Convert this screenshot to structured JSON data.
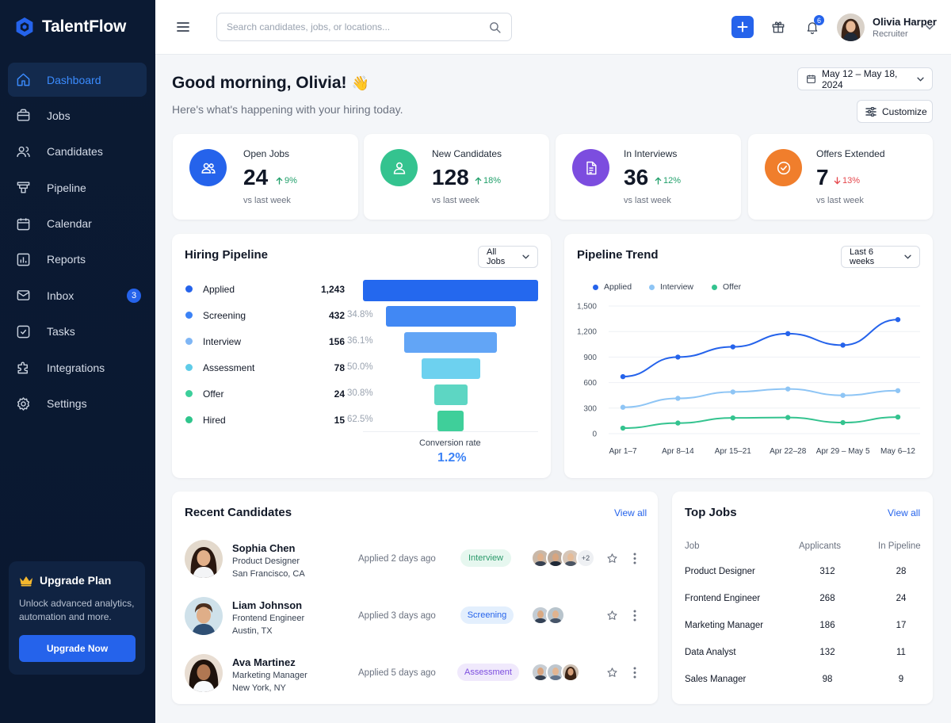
{
  "app": {
    "name": "TalentFlow",
    "accent": "#2563eb"
  },
  "sidebar": {
    "items": [
      {
        "label": "Dashboard",
        "icon": "home-icon",
        "active": true
      },
      {
        "label": "Jobs",
        "icon": "briefcase-icon"
      },
      {
        "label": "Candidates",
        "icon": "users-icon"
      },
      {
        "label": "Pipeline",
        "icon": "funnel-icon"
      },
      {
        "label": "Calendar",
        "icon": "calendar-icon"
      },
      {
        "label": "Reports",
        "icon": "bar-chart-icon"
      },
      {
        "label": "Inbox",
        "icon": "mail-icon",
        "badge": "3"
      },
      {
        "label": "Tasks",
        "icon": "checkbox-icon"
      },
      {
        "label": "Integrations",
        "icon": "puzzle-icon"
      },
      {
        "label": "Settings",
        "icon": "gear-icon"
      }
    ],
    "upgrade": {
      "title": "Upgrade Plan",
      "description": "Unlock advanced analytics, automation and more.",
      "button": "Upgrade Now"
    }
  },
  "topbar": {
    "search_placeholder": "Search candidates, jobs, or locations...",
    "notification_count": "6",
    "user": {
      "name": "Olivia Harper",
      "role": "Recruiter"
    }
  },
  "header": {
    "greeting": "Good morning, Olivia!",
    "emoji": "👋",
    "subtitle": "Here's what's happening with your hiring today.",
    "date_range": "May 12 – May 18, 2024",
    "customize": "Customize"
  },
  "stats": [
    {
      "label": "Open Jobs",
      "value": "24",
      "change": "9%",
      "direction": "up",
      "compare": "vs last week",
      "color": "#2563eb"
    },
    {
      "label": "New Candidates",
      "value": "128",
      "change": "18%",
      "direction": "up",
      "compare": "vs last week",
      "color": "#34c38f"
    },
    {
      "label": "In Interviews",
      "value": "36",
      "change": "12%",
      "direction": "up",
      "compare": "vs last week",
      "color": "#7c4ddf"
    },
    {
      "label": "Offers Extended",
      "value": "7",
      "change": "13%",
      "direction": "down",
      "compare": "vs last week",
      "color": "#f07e2c"
    }
  ],
  "pipeline": {
    "title": "Hiring Pipeline",
    "filter": "All Jobs",
    "stages": [
      {
        "stage": "Applied",
        "count": "1,243",
        "pct": "",
        "color": "#2563eb",
        "bar_color": "#2468ee"
      },
      {
        "stage": "Screening",
        "count": "432",
        "pct": "34.8%",
        "color": "#3b82f6",
        "bar_color": "#4188f4"
      },
      {
        "stage": "Interview",
        "count": "156",
        "pct": "36.1%",
        "color": "#7fb6f5",
        "bar_color": "#62a5f6"
      },
      {
        "stage": "Assessment",
        "count": "78",
        "pct": "50.0%",
        "color": "#5fcce8",
        "bar_color": "#6dd1ef"
      },
      {
        "stage": "Offer",
        "count": "24",
        "pct": "30.8%",
        "color": "#3ccf9b",
        "bar_color": "#5dd6c3"
      },
      {
        "stage": "Hired",
        "count": "15",
        "pct": "62.5%",
        "color": "#2fc58c",
        "bar_color": "#3fcf9a"
      }
    ],
    "conversion_label": "Conversion rate",
    "conversion_value": "1.2%"
  },
  "trend": {
    "title": "Pipeline Trend",
    "filter": "Last 6 weeks"
  },
  "chart_data": {
    "type": "line",
    "title": "Pipeline Trend",
    "x": [
      "Apr 1–7",
      "Apr 8–14",
      "Apr 15–21",
      "Apr 22–28",
      "Apr 29 – May 5",
      "May 6–12"
    ],
    "series": [
      {
        "name": "Applied",
        "color": "#2563eb",
        "values": [
          670,
          900,
          1020,
          1175,
          1040,
          1340
        ]
      },
      {
        "name": "Interview",
        "color": "#8ec5f5",
        "values": [
          310,
          415,
          490,
          525,
          450,
          505
        ]
      },
      {
        "name": "Offer",
        "color": "#34c38f",
        "values": [
          65,
          125,
          185,
          190,
          130,
          195
        ]
      }
    ],
    "yticks": [
      "1,500",
      "1,200",
      "900",
      "600",
      "300",
      "0"
    ],
    "ylim": [
      0,
      1500
    ],
    "grid": true,
    "legend": "top-left",
    "xlabel": "",
    "ylabel": ""
  },
  "recent": {
    "title": "Recent Candidates",
    "view_all": "View all",
    "candidates": [
      {
        "name": "Sophia Chen",
        "role": "Product Designer",
        "location": "San Francisco, CA",
        "applied": "Applied 2 days ago",
        "stage": "Interview",
        "stage_bg": "#e6f7ef",
        "stage_fg": "#2a9a6a",
        "extra": "+2"
      },
      {
        "name": "Liam Johnson",
        "role": "Frontend Engineer",
        "location": "Austin, TX",
        "applied": "Applied 3 days ago",
        "stage": "Screening",
        "stage_bg": "#e3effd",
        "stage_fg": "#2563eb",
        "extra": ""
      },
      {
        "name": "Ava Martinez",
        "role": "Marketing Manager",
        "location": "New York, NY",
        "applied": "Applied 5 days ago",
        "stage": "Assessment",
        "stage_bg": "#f0e9fc",
        "stage_fg": "#7c4ddf",
        "extra": ""
      }
    ]
  },
  "top_jobs": {
    "title": "Top Jobs",
    "view_all": "View all",
    "headers": [
      "Job",
      "Applicants",
      "In Pipeline"
    ],
    "rows": [
      [
        "Product Designer",
        "312",
        "28"
      ],
      [
        "Frontend Engineer",
        "268",
        "24"
      ],
      [
        "Marketing Manager",
        "186",
        "17"
      ],
      [
        "Data Analyst",
        "132",
        "11"
      ],
      [
        "Sales Manager",
        "98",
        "9"
      ]
    ]
  }
}
